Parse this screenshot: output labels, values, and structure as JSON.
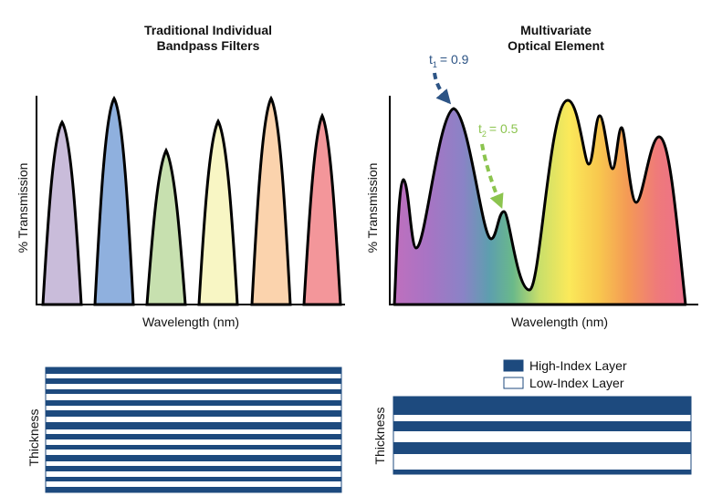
{
  "left_panel": {
    "title_line1": "Traditional Individual",
    "title_line2": "Bandpass Filters",
    "xlabel": "Wavelength (nm)",
    "ylabel": "% Transmission",
    "peak_colors": [
      "#c9bcda",
      "#8fb0de",
      "#c7e0af",
      "#f8f6c4",
      "#fbd3ad",
      "#f3969a"
    ],
    "stack_ylabel": "Thickness"
  },
  "right_panel": {
    "title_line1": "Multivariate",
    "title_line2": "Optical Element",
    "xlabel": "Wavelength (nm)",
    "ylabel": "% Transmission",
    "annotation1": {
      "t": "t",
      "sub": "1",
      "value": "= 0.9",
      "color": "#2d5485"
    },
    "annotation2": {
      "t": "t",
      "sub": "2",
      "value": "= 0.5",
      "color": "#8cc44f"
    },
    "stack_ylabel": "Thickness"
  },
  "legend": {
    "high_index": "High-Index Layer",
    "low_index": "Low-Index Layer",
    "high_color": "#1d4a7e"
  }
}
